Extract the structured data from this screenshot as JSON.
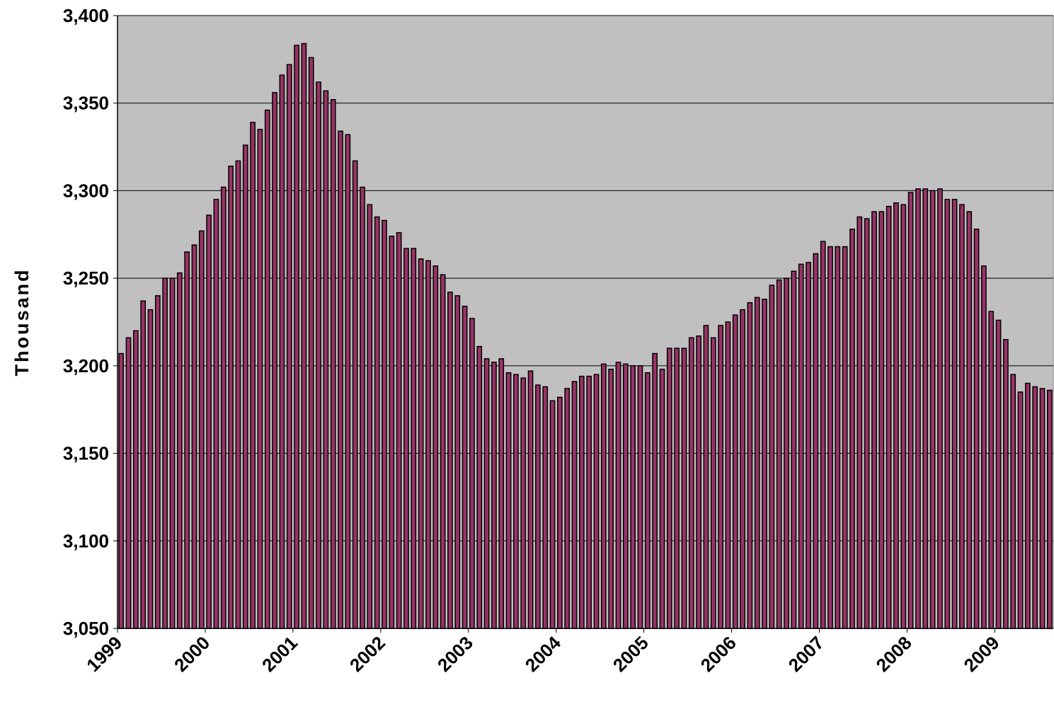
{
  "chart_data": {
    "type": "bar",
    "y_label": "Thousand",
    "categories": [
      "1999",
      null,
      null,
      null,
      null,
      null,
      null,
      null,
      null,
      null,
      null,
      null,
      "2000",
      null,
      null,
      null,
      null,
      null,
      null,
      null,
      null,
      null,
      null,
      null,
      "2001",
      null,
      null,
      null,
      null,
      null,
      null,
      null,
      null,
      null,
      null,
      null,
      "2002",
      null,
      null,
      null,
      null,
      null,
      null,
      null,
      null,
      null,
      null,
      null,
      "2003",
      null,
      null,
      null,
      null,
      null,
      null,
      null,
      null,
      null,
      null,
      null,
      "2004",
      null,
      null,
      null,
      null,
      null,
      null,
      null,
      null,
      null,
      null,
      null,
      "2005",
      null,
      null,
      null,
      null,
      null,
      null,
      null,
      null,
      null,
      null,
      null,
      "2006",
      null,
      null,
      null,
      null,
      null,
      null,
      null,
      null,
      null,
      null,
      null,
      "2007",
      null,
      null,
      null,
      null,
      null,
      null,
      null,
      null,
      null,
      null,
      null,
      "2008",
      null,
      null,
      null,
      null,
      null,
      null,
      null,
      null,
      null,
      null,
      null,
      "2009",
      null,
      null,
      null,
      null,
      null,
      null,
      null
    ],
    "values": [
      3207,
      3216,
      3220,
      3237,
      3232,
      3240,
      3250,
      3250,
      3253,
      3265,
      3269,
      3277,
      3286,
      3295,
      3302,
      3314,
      3317,
      3326,
      3339,
      3335,
      3346,
      3356,
      3366,
      3372,
      3383,
      3384,
      3376,
      3362,
      3357,
      3352,
      3334,
      3332,
      3317,
      3302,
      3292,
      3285,
      3283,
      3274,
      3276,
      3267,
      3267,
      3261,
      3260,
      3257,
      3252,
      3242,
      3240,
      3234,
      3227,
      3211,
      3204,
      3202,
      3204,
      3196,
      3195,
      3193,
      3197,
      3189,
      3188,
      3180,
      3182,
      3187,
      3191,
      3194,
      3194,
      3195,
      3201,
      3198,
      3202,
      3201,
      3200,
      3200,
      3196,
      3207,
      3198,
      3210,
      3210,
      3210,
      3216,
      3217,
      3223,
      3216,
      3223,
      3225,
      3229,
      3232,
      3236,
      3239,
      3238,
      3246,
      3249,
      3250,
      3254,
      3258,
      3259,
      3264,
      3271,
      3268,
      3268,
      3268,
      3278,
      3285,
      3284,
      3288,
      3288,
      3291,
      3293,
      3292,
      3299,
      3301,
      3301,
      3300,
      3301,
      3295,
      3295,
      3292,
      3288,
      3278,
      3257,
      3231,
      3226,
      3215,
      3195,
      3185,
      3190,
      3188,
      3187,
      3186
    ],
    "color": "#993366",
    "ylim": [
      3050,
      3400
    ],
    "yticks": [
      {
        "value": 3050,
        "label": "3,050"
      },
      {
        "value": 3100,
        "label": "3,100"
      },
      {
        "value": 3150,
        "label": "3,150"
      },
      {
        "value": 3200,
        "label": "3,200"
      },
      {
        "value": 3250,
        "label": "3,250"
      },
      {
        "value": 3300,
        "label": "3,300"
      },
      {
        "value": 3350,
        "label": "3,350"
      },
      {
        "value": 3400,
        "label": "3,400"
      }
    ],
    "grid": true
  }
}
